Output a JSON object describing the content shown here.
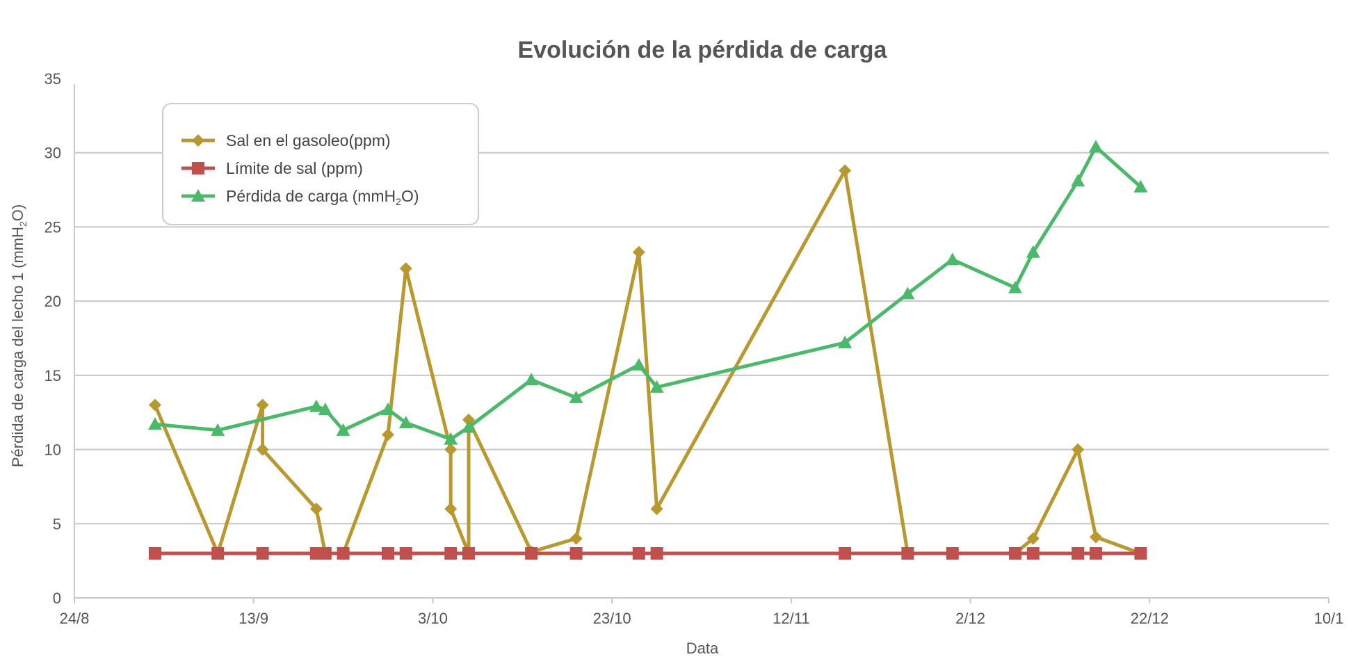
{
  "chart_data": {
    "type": "line",
    "title": "Evolución de la pérdida de carga",
    "xlabel": "Data",
    "ylabel_prefix": "Pérdida de carga del lecho 1 (mmH",
    "ylabel_sub": "2",
    "ylabel_suffix": "O)",
    "xlim": [
      0,
      140
    ],
    "ylim": [
      0,
      35
    ],
    "grid": true,
    "legend_position": "top-left",
    "x_ticks": [
      {
        "value": 0,
        "label": "24/8"
      },
      {
        "value": 20,
        "label": "13/9"
      },
      {
        "value": 40,
        "label": "3/10"
      },
      {
        "value": 60,
        "label": "23/10"
      },
      {
        "value": 80,
        "label": "12/11"
      },
      {
        "value": 100,
        "label": "2/12"
      },
      {
        "value": 120,
        "label": "22/12"
      },
      {
        "value": 140,
        "label": "10/1"
      }
    ],
    "y_ticks": [
      {
        "value": 0,
        "label": "0"
      },
      {
        "value": 5,
        "label": "5"
      },
      {
        "value": 10,
        "label": "10"
      },
      {
        "value": 15,
        "label": "15"
      },
      {
        "value": 20,
        "label": "20"
      },
      {
        "value": 25,
        "label": "25"
      },
      {
        "value": 30,
        "label": "30"
      },
      {
        "value": 35,
        "label": "35"
      }
    ],
    "series": [
      {
        "name": "Sal en el gasoleo(ppm)",
        "name_prefix": "Sal en el gasoleo(ppm)",
        "name_sub": "",
        "name_suffix": "",
        "color": "#b8982f",
        "marker": "diamond",
        "points": [
          {
            "x": 9,
            "y": 13
          },
          {
            "x": 16,
            "y": 3
          },
          {
            "x": 21,
            "y": 13
          },
          {
            "x": 21,
            "y": 10
          },
          {
            "x": 27,
            "y": 6
          },
          {
            "x": 28,
            "y": 3
          },
          {
            "x": 30,
            "y": 3
          },
          {
            "x": 35,
            "y": 11
          },
          {
            "x": 37,
            "y": 22.2
          },
          {
            "x": 42,
            "y": 10
          },
          {
            "x": 42,
            "y": 6
          },
          {
            "x": 44,
            "y": 3
          },
          {
            "x": 44,
            "y": 12
          },
          {
            "x": 51,
            "y": 3.1
          },
          {
            "x": 56,
            "y": 4
          },
          {
            "x": 63,
            "y": 23.3
          },
          {
            "x": 65,
            "y": 6
          },
          {
            "x": 86,
            "y": 28.8
          },
          {
            "x": 93,
            "y": 3
          },
          {
            "x": 98,
            "y": 3
          },
          {
            "x": 105,
            "y": 3
          },
          {
            "x": 107,
            "y": 4
          },
          {
            "x": 112,
            "y": 10
          },
          {
            "x": 114,
            "y": 4.1
          },
          {
            "x": 119,
            "y": 3
          }
        ]
      },
      {
        "name": "Límite de sal (ppm)",
        "name_prefix": "Límite de sal (ppm)",
        "name_sub": "",
        "name_suffix": "",
        "color": "#c0504d",
        "marker": "square",
        "points": [
          {
            "x": 9,
            "y": 3
          },
          {
            "x": 16,
            "y": 3
          },
          {
            "x": 21,
            "y": 3
          },
          {
            "x": 27,
            "y": 3
          },
          {
            "x": 28,
            "y": 3
          },
          {
            "x": 30,
            "y": 3
          },
          {
            "x": 35,
            "y": 3
          },
          {
            "x": 37,
            "y": 3
          },
          {
            "x": 42,
            "y": 3
          },
          {
            "x": 44,
            "y": 3
          },
          {
            "x": 51,
            "y": 3
          },
          {
            "x": 56,
            "y": 3
          },
          {
            "x": 63,
            "y": 3
          },
          {
            "x": 65,
            "y": 3
          },
          {
            "x": 86,
            "y": 3
          },
          {
            "x": 93,
            "y": 3
          },
          {
            "x": 98,
            "y": 3
          },
          {
            "x": 105,
            "y": 3
          },
          {
            "x": 107,
            "y": 3
          },
          {
            "x": 112,
            "y": 3
          },
          {
            "x": 114,
            "y": 3
          },
          {
            "x": 119,
            "y": 3
          }
        ]
      },
      {
        "name": "Pérdida de carga (mmH2O)",
        "name_prefix": "Pérdida de carga (mmH",
        "name_sub": "2",
        "name_suffix": "O)",
        "color": "#4cb86a",
        "marker": "triangle",
        "points": [
          {
            "x": 9,
            "y": 11.7
          },
          {
            "x": 16,
            "y": 11.3
          },
          {
            "x": 27,
            "y": 12.9
          },
          {
            "x": 28,
            "y": 12.7
          },
          {
            "x": 30,
            "y": 11.3
          },
          {
            "x": 35,
            "y": 12.7
          },
          {
            "x": 37,
            "y": 11.8
          },
          {
            "x": 42,
            "y": 10.7
          },
          {
            "x": 44,
            "y": 11.5
          },
          {
            "x": 51,
            "y": 14.7
          },
          {
            "x": 56,
            "y": 13.5
          },
          {
            "x": 63,
            "y": 15.7
          },
          {
            "x": 65,
            "y": 14.2
          },
          {
            "x": 86,
            "y": 17.2
          },
          {
            "x": 93,
            "y": 20.5
          },
          {
            "x": 98,
            "y": 22.8
          },
          {
            "x": 105,
            "y": 20.9
          },
          {
            "x": 107,
            "y": 23.3
          },
          {
            "x": 112,
            "y": 28.1
          },
          {
            "x": 114,
            "y": 30.4
          },
          {
            "x": 119,
            "y": 27.7
          }
        ]
      }
    ]
  }
}
